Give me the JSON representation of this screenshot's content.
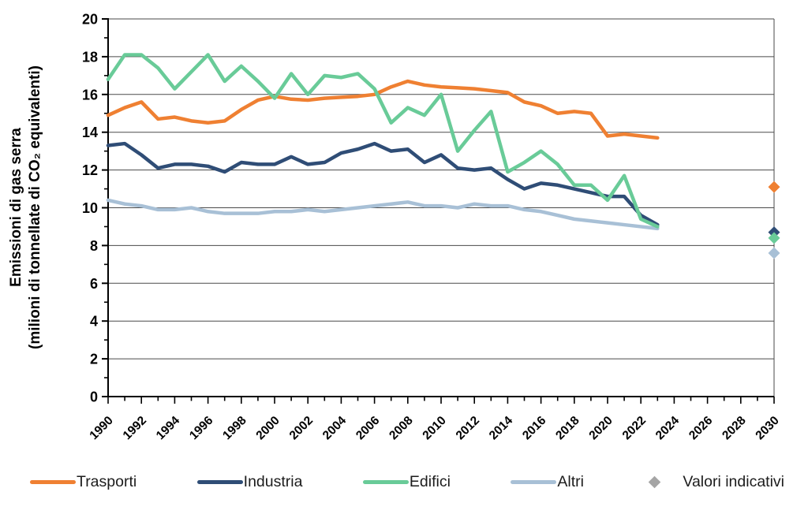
{
  "chart_data": {
    "type": "line",
    "title": "",
    "ylabel_line1": "Emissioni  di gas serra",
    "ylabel_line2": "(milioni di tonnellate di CO₂ equivalenti)",
    "grid": true,
    "legend_position": "bottom",
    "x_axis": {
      "min": 1990,
      "max": 2030,
      "tick_step": 1,
      "tick_labels": [
        1990,
        1992,
        1994,
        1996,
        1998,
        2000,
        2002,
        2004,
        2006,
        2008,
        2010,
        2012,
        2014,
        2016,
        2018,
        2020,
        2022,
        2024,
        2026,
        2028,
        2030
      ]
    },
    "y_axis": {
      "min": 0,
      "max": 20,
      "minor_tick_step": 1,
      "tick_labels": [
        0,
        2,
        4,
        6,
        8,
        10,
        12,
        14,
        16,
        18,
        20
      ]
    },
    "x": [
      1990,
      1991,
      1992,
      1993,
      1994,
      1995,
      1996,
      1997,
      1998,
      1999,
      2000,
      2001,
      2002,
      2003,
      2004,
      2005,
      2006,
      2007,
      2008,
      2009,
      2010,
      2011,
      2012,
      2013,
      2014,
      2015,
      2016,
      2017,
      2018,
      2019,
      2020,
      2021,
      2022,
      2023
    ],
    "series": [
      {
        "name": "Trasporti",
        "color": "#EF8032",
        "values": [
          14.9,
          15.3,
          15.6,
          14.7,
          14.8,
          14.6,
          14.5,
          14.6,
          15.2,
          15.7,
          15.9,
          15.75,
          15.7,
          15.8,
          15.85,
          15.9,
          16.0,
          16.4,
          16.7,
          16.5,
          16.4,
          16.35,
          16.3,
          16.2,
          16.1,
          15.6,
          15.4,
          15.0,
          15.1,
          15.0,
          13.8,
          13.9,
          13.8,
          13.7
        ]
      },
      {
        "name": "Industria",
        "color": "#2F4D76",
        "values": [
          13.3,
          13.4,
          12.8,
          12.1,
          12.3,
          12.3,
          12.2,
          11.9,
          12.4,
          12.3,
          12.3,
          12.7,
          12.3,
          12.4,
          12.9,
          13.1,
          13.4,
          13.0,
          13.1,
          12.4,
          12.8,
          12.1,
          12.0,
          12.1,
          11.5,
          11.0,
          11.3,
          11.2,
          11.0,
          10.8,
          10.6,
          10.6,
          9.6,
          9.1
        ]
      },
      {
        "name": "Edifici",
        "color": "#69CB98",
        "values": [
          16.8,
          18.1,
          18.1,
          17.4,
          16.3,
          17.2,
          18.1,
          16.7,
          17.5,
          16.7,
          15.8,
          17.1,
          16.0,
          17.0,
          16.9,
          17.1,
          16.3,
          14.5,
          15.3,
          14.9,
          16.0,
          13.0,
          14.1,
          15.1,
          11.9,
          12.4,
          13.0,
          12.3,
          11.2,
          11.2,
          10.4,
          11.7,
          9.4,
          9.0
        ]
      },
      {
        "name": "Altri",
        "color": "#A8C0D6",
        "values": [
          10.4,
          10.2,
          10.1,
          9.9,
          9.9,
          10.0,
          9.8,
          9.7,
          9.7,
          9.7,
          9.8,
          9.8,
          9.9,
          9.8,
          9.9,
          10.0,
          10.1,
          10.2,
          10.3,
          10.1,
          10.1,
          10.0,
          10.2,
          10.1,
          10.1,
          9.9,
          9.8,
          9.6,
          9.4,
          9.3,
          9.2,
          9.1,
          9.0,
          8.9
        ]
      }
    ],
    "indicative_values": {
      "label": "Valori indicativi",
      "marker_color": "#A5A5A5",
      "year": 2030,
      "points": [
        {
          "series": "Trasporti",
          "value": 11.1,
          "color": "#EF8032"
        },
        {
          "series": "Industria",
          "value": 8.7,
          "color": "#2F4D76"
        },
        {
          "series": "Edifici",
          "value": 8.4,
          "color": "#69CB98"
        },
        {
          "series": "Altri",
          "value": 7.6,
          "color": "#A8C0D6"
        }
      ]
    }
  }
}
